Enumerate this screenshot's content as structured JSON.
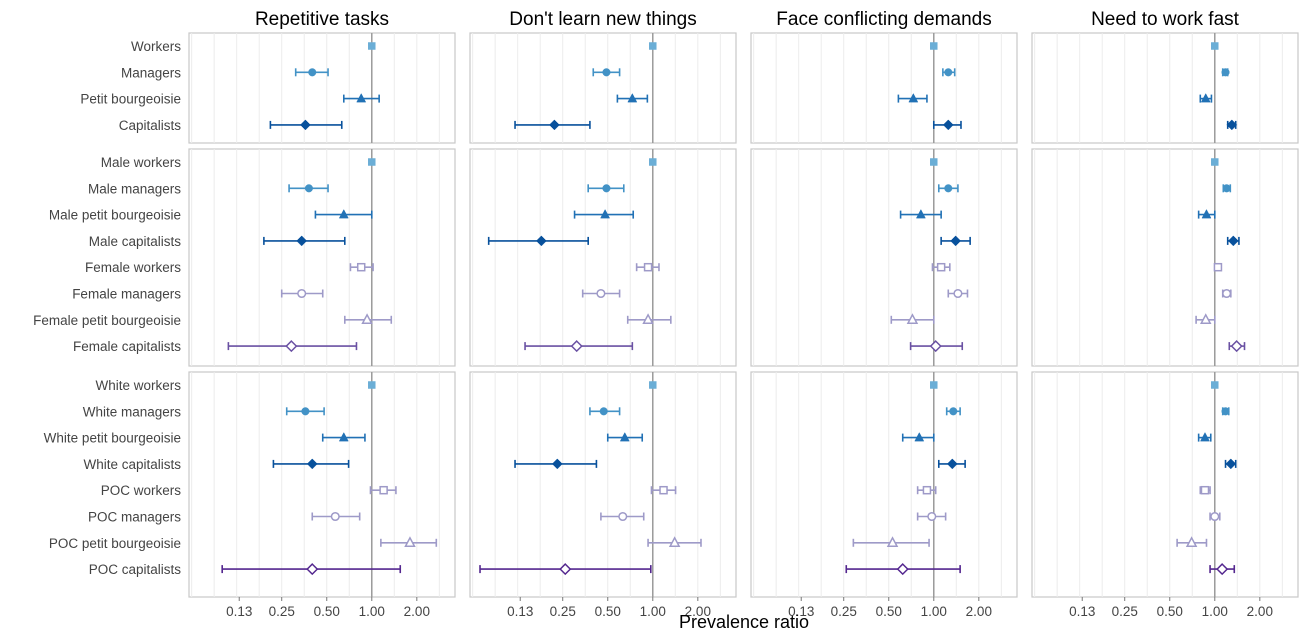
{
  "chart_data": {
    "type": "forest",
    "xlabel": "Prevalence ratio",
    "x_scale": "log2",
    "x_ticks": [
      0.13,
      0.25,
      0.5,
      1.0,
      2.0
    ],
    "x_tick_labels": [
      "0.13",
      "0.25",
      "0.50",
      "1.00",
      "2.00"
    ],
    "xlim": [
      0.06,
      3.6
    ],
    "reference_line": 1.0,
    "grid": true,
    "facets": [
      "Repetitive tasks",
      "Don't learn new things",
      "Face conflicting demands",
      "Need to work fast"
    ],
    "colors": {
      "workers": "#6baed6",
      "managers": "#4292c6",
      "petit_bourgeoisie": "#2171b5",
      "capitalists": "#08519c",
      "female": "#9e9ac8",
      "female_strong": "#6a51a3",
      "poc": "#9e9ac8",
      "poc_strong": "#54278f"
    },
    "panels": [
      {
        "rows": [
          {
            "label": "Workers",
            "shape": "square",
            "open": false,
            "color": "#6baed6",
            "values": [
              {
                "est": 1.0,
                "lo": 1.0,
                "hi": 1.0
              },
              {
                "est": 1.0,
                "lo": 1.0,
                "hi": 1.0
              },
              {
                "est": 1.0,
                "lo": 1.0,
                "hi": 1.0
              },
              {
                "est": 1.0,
                "lo": 1.0,
                "hi": 1.0
              }
            ]
          },
          {
            "label": "Managers",
            "shape": "circle",
            "open": false,
            "color": "#4292c6",
            "values": [
              {
                "est": 0.4,
                "lo": 0.31,
                "hi": 0.51
              },
              {
                "est": 0.49,
                "lo": 0.4,
                "hi": 0.6
              },
              {
                "est": 1.25,
                "lo": 1.15,
                "hi": 1.38
              },
              {
                "est": 1.18,
                "lo": 1.13,
                "hi": 1.22
              }
            ]
          },
          {
            "label": "Petit bourgeoisie",
            "shape": "triangle",
            "open": false,
            "color": "#2171b5",
            "values": [
              {
                "est": 0.85,
                "lo": 0.65,
                "hi": 1.12
              },
              {
                "est": 0.73,
                "lo": 0.58,
                "hi": 0.92
              },
              {
                "est": 0.73,
                "lo": 0.58,
                "hi": 0.9
              },
              {
                "est": 0.87,
                "lo": 0.8,
                "hi": 0.95
              }
            ]
          },
          {
            "label": "Capitalists",
            "shape": "diamond",
            "open": false,
            "color": "#08519c",
            "values": [
              {
                "est": 0.36,
                "lo": 0.21,
                "hi": 0.63
              },
              {
                "est": 0.22,
                "lo": 0.12,
                "hi": 0.38
              },
              {
                "est": 1.25,
                "lo": 1.0,
                "hi": 1.52
              },
              {
                "est": 1.3,
                "lo": 1.22,
                "hi": 1.38
              }
            ]
          }
        ]
      },
      {
        "rows": [
          {
            "label": "Male workers",
            "shape": "square",
            "open": false,
            "color": "#6baed6",
            "values": [
              {
                "est": 1.0,
                "lo": 1.0,
                "hi": 1.0
              },
              {
                "est": 1.0,
                "lo": 1.0,
                "hi": 1.0
              },
              {
                "est": 1.0,
                "lo": 1.0,
                "hi": 1.0
              },
              {
                "est": 1.0,
                "lo": 1.0,
                "hi": 1.0
              }
            ]
          },
          {
            "label": "Male managers",
            "shape": "circle",
            "open": false,
            "color": "#4292c6",
            "values": [
              {
                "est": 0.38,
                "lo": 0.28,
                "hi": 0.51
              },
              {
                "est": 0.49,
                "lo": 0.37,
                "hi": 0.64
              },
              {
                "est": 1.25,
                "lo": 1.08,
                "hi": 1.45
              },
              {
                "est": 1.2,
                "lo": 1.14,
                "hi": 1.27
              }
            ]
          },
          {
            "label": "Male petit bourgeoisie",
            "shape": "triangle",
            "open": false,
            "color": "#2171b5",
            "values": [
              {
                "est": 0.65,
                "lo": 0.42,
                "hi": 1.0
              },
              {
                "est": 0.48,
                "lo": 0.3,
                "hi": 0.74
              },
              {
                "est": 0.82,
                "lo": 0.6,
                "hi": 1.12
              },
              {
                "est": 0.88,
                "lo": 0.78,
                "hi": 1.0
              }
            ]
          },
          {
            "label": "Male capitalists",
            "shape": "diamond",
            "open": false,
            "color": "#08519c",
            "values": [
              {
                "est": 0.34,
                "lo": 0.19,
                "hi": 0.66
              },
              {
                "est": 0.18,
                "lo": 0.08,
                "hi": 0.37
              },
              {
                "est": 1.4,
                "lo": 1.12,
                "hi": 1.75
              },
              {
                "est": 1.33,
                "lo": 1.22,
                "hi": 1.45
              }
            ]
          },
          {
            "label": "Female workers",
            "shape": "square",
            "open": true,
            "color": "#9e9ac8",
            "values": [
              {
                "est": 0.85,
                "lo": 0.72,
                "hi": 1.02
              },
              {
                "est": 0.93,
                "lo": 0.78,
                "hi": 1.1
              },
              {
                "est": 1.12,
                "lo": 0.98,
                "hi": 1.28
              },
              {
                "est": 1.05,
                "lo": 1.0,
                "hi": 1.1
              }
            ]
          },
          {
            "label": "Female managers",
            "shape": "circle",
            "open": true,
            "color": "#9e9ac8",
            "values": [
              {
                "est": 0.34,
                "lo": 0.25,
                "hi": 0.47
              },
              {
                "est": 0.45,
                "lo": 0.34,
                "hi": 0.6
              },
              {
                "est": 1.45,
                "lo": 1.25,
                "hi": 1.68
              },
              {
                "est": 1.2,
                "lo": 1.13,
                "hi": 1.28
              }
            ]
          },
          {
            "label": "Female petit bourgeoisie",
            "shape": "triangle",
            "open": true,
            "color": "#9e9ac8",
            "values": [
              {
                "est": 0.93,
                "lo": 0.66,
                "hi": 1.35
              },
              {
                "est": 0.93,
                "lo": 0.68,
                "hi": 1.32
              },
              {
                "est": 0.72,
                "lo": 0.52,
                "hi": 1.0
              },
              {
                "est": 0.87,
                "lo": 0.75,
                "hi": 1.0
              }
            ]
          },
          {
            "label": "Female capitalists",
            "shape": "diamond",
            "open": true,
            "color": "#6a51a3",
            "values": [
              {
                "est": 0.29,
                "lo": 0.11,
                "hi": 0.79
              },
              {
                "est": 0.31,
                "lo": 0.14,
                "hi": 0.73
              },
              {
                "est": 1.03,
                "lo": 0.7,
                "hi": 1.55
              },
              {
                "est": 1.4,
                "lo": 1.25,
                "hi": 1.58
              }
            ]
          }
        ]
      },
      {
        "rows": [
          {
            "label": "White workers",
            "shape": "square",
            "open": false,
            "color": "#6baed6",
            "values": [
              {
                "est": 1.0,
                "lo": 1.0,
                "hi": 1.0
              },
              {
                "est": 1.0,
                "lo": 1.0,
                "hi": 1.0
              },
              {
                "est": 1.0,
                "lo": 1.0,
                "hi": 1.0
              },
              {
                "est": 1.0,
                "lo": 1.0,
                "hi": 1.0
              }
            ]
          },
          {
            "label": "White managers",
            "shape": "circle",
            "open": false,
            "color": "#4292c6",
            "values": [
              {
                "est": 0.36,
                "lo": 0.27,
                "hi": 0.48
              },
              {
                "est": 0.47,
                "lo": 0.38,
                "hi": 0.6
              },
              {
                "est": 1.35,
                "lo": 1.22,
                "hi": 1.5
              },
              {
                "est": 1.18,
                "lo": 1.13,
                "hi": 1.24
              }
            ]
          },
          {
            "label": "White petit bourgeoisie",
            "shape": "triangle",
            "open": false,
            "color": "#2171b5",
            "values": [
              {
                "est": 0.65,
                "lo": 0.47,
                "hi": 0.9
              },
              {
                "est": 0.65,
                "lo": 0.5,
                "hi": 0.85
              },
              {
                "est": 0.8,
                "lo": 0.62,
                "hi": 1.0
              },
              {
                "est": 0.86,
                "lo": 0.78,
                "hi": 0.94
              }
            ]
          },
          {
            "label": "White capitalists",
            "shape": "diamond",
            "open": false,
            "color": "#08519c",
            "values": [
              {
                "est": 0.4,
                "lo": 0.22,
                "hi": 0.7
              },
              {
                "est": 0.23,
                "lo": 0.12,
                "hi": 0.42
              },
              {
                "est": 1.33,
                "lo": 1.08,
                "hi": 1.62
              },
              {
                "est": 1.28,
                "lo": 1.18,
                "hi": 1.38
              }
            ]
          },
          {
            "label": "POC workers",
            "shape": "square",
            "open": true,
            "color": "#9e9ac8",
            "values": [
              {
                "est": 1.2,
                "lo": 0.98,
                "hi": 1.45
              },
              {
                "est": 1.18,
                "lo": 0.98,
                "hi": 1.42
              },
              {
                "est": 0.9,
                "lo": 0.78,
                "hi": 1.03
              },
              {
                "est": 0.86,
                "lo": 0.8,
                "hi": 0.93
              }
            ]
          },
          {
            "label": "POC managers",
            "shape": "circle",
            "open": true,
            "color": "#9e9ac8",
            "values": [
              {
                "est": 0.57,
                "lo": 0.4,
                "hi": 0.83
              },
              {
                "est": 0.63,
                "lo": 0.45,
                "hi": 0.87
              },
              {
                "est": 0.97,
                "lo": 0.78,
                "hi": 1.2
              },
              {
                "est": 1.0,
                "lo": 0.93,
                "hi": 1.08
              }
            ]
          },
          {
            "label": "POC petit bourgeoisie",
            "shape": "triangle",
            "open": true,
            "color": "#9e9ac8",
            "values": [
              {
                "est": 1.8,
                "lo": 1.15,
                "hi": 2.7
              },
              {
                "est": 1.4,
                "lo": 0.93,
                "hi": 2.1
              },
              {
                "est": 0.53,
                "lo": 0.29,
                "hi": 0.93
              },
              {
                "est": 0.7,
                "lo": 0.56,
                "hi": 0.88
              }
            ]
          },
          {
            "label": "POC capitalists",
            "shape": "diamond",
            "open": true,
            "color": "#54278f",
            "values": [
              {
                "est": 0.4,
                "lo": 0.1,
                "hi": 1.55
              },
              {
                "est": 0.26,
                "lo": 0.07,
                "hi": 0.97
              },
              {
                "est": 0.62,
                "lo": 0.26,
                "hi": 1.5
              },
              {
                "est": 1.12,
                "lo": 0.93,
                "hi": 1.35
              }
            ]
          }
        ]
      }
    ]
  }
}
